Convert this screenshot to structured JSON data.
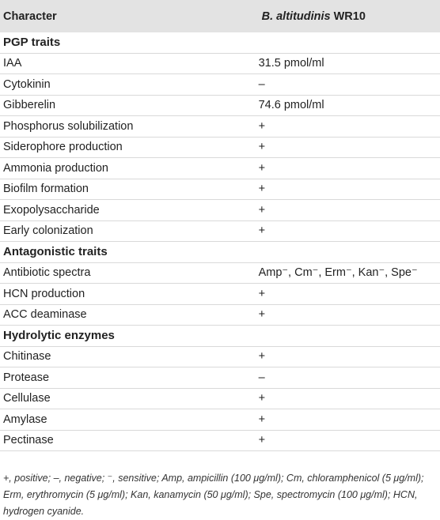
{
  "header": {
    "col1": "Character",
    "col2_italic": "B. altitudinis",
    "col2_rest": " WR10"
  },
  "rows": [
    {
      "type": "section",
      "label": "PGP traits",
      "value": ""
    },
    {
      "type": "row",
      "label": "IAA",
      "value": "31.5 pmol/ml"
    },
    {
      "type": "row",
      "label": "Cytokinin",
      "value": "–"
    },
    {
      "type": "row",
      "label": "Gibberelin",
      "value": "74.6 pmol/ml"
    },
    {
      "type": "row",
      "label": "Phosphorus solubilization",
      "value": "+"
    },
    {
      "type": "row",
      "label": "Siderophore production",
      "value": "+"
    },
    {
      "type": "row",
      "label": "Ammonia production",
      "value": "+"
    },
    {
      "type": "row",
      "label": "Biofilm formation",
      "value": "+"
    },
    {
      "type": "row",
      "label": "Exopolysaccharide",
      "value": "+"
    },
    {
      "type": "row",
      "label": "Early colonization",
      "value": "+"
    },
    {
      "type": "section",
      "label": "Antagonistic traits",
      "value": ""
    },
    {
      "type": "row",
      "label": "Antibiotic spectra",
      "value": "Amp⁻, Cm⁻, Erm⁻, Kan⁻, Spe⁻"
    },
    {
      "type": "row",
      "label": "HCN production",
      "value": "+"
    },
    {
      "type": "row",
      "label": "ACC deaminase",
      "value": "+"
    },
    {
      "type": "section",
      "label": "Hydrolytic enzymes",
      "value": ""
    },
    {
      "type": "row",
      "label": "Chitinase",
      "value": "+"
    },
    {
      "type": "row",
      "label": "Protease",
      "value": "–"
    },
    {
      "type": "row",
      "label": "Cellulase",
      "value": "+"
    },
    {
      "type": "row",
      "label": "Amylase",
      "value": "+"
    },
    {
      "type": "row",
      "label": "Pectinase",
      "value": "+"
    }
  ],
  "footnote": "+, positive; –, negative; ⁻, sensitive; Amp, ampicillin (100 μg/ml); Cm, chloramphenicol (5 μg/ml); Erm, erythromycin (5 μg/ml); Kan, kanamycin (50 μg/ml); Spe, spectromycin (100 μg/ml); HCN, hydrogen cyanide."
}
